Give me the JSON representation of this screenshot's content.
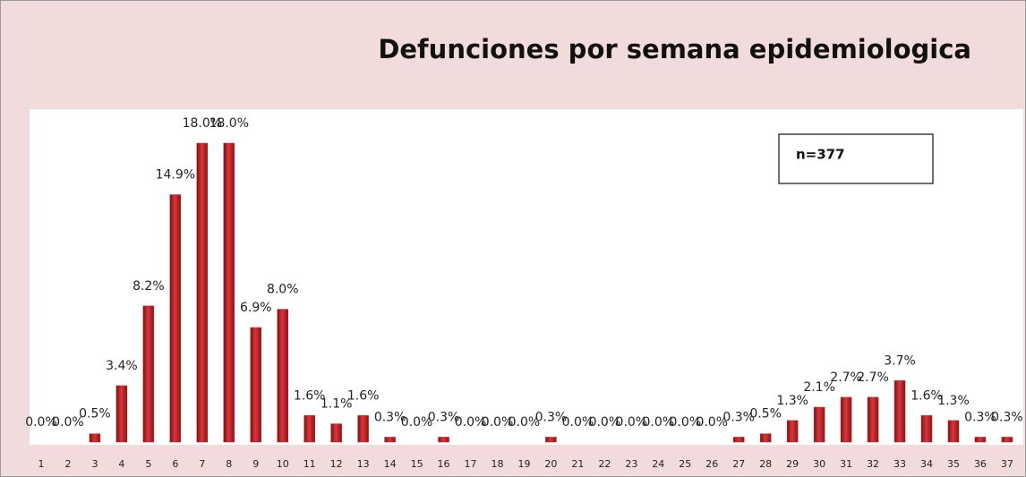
{
  "chart_data": {
    "type": "bar",
    "title": "Defunciones por semana epidemiologica",
    "annotation": "n=377",
    "categories": [
      "1",
      "2",
      "3",
      "4",
      "5",
      "6",
      "7",
      "8",
      "9",
      "10",
      "11",
      "12",
      "13",
      "14",
      "15",
      "16",
      "17",
      "18",
      "19",
      "20",
      "21",
      "22",
      "23",
      "24",
      "25",
      "26",
      "27",
      "28",
      "29",
      "30",
      "31",
      "32",
      "33",
      "34",
      "35",
      "36",
      "37"
    ],
    "values": [
      0.0,
      0.0,
      0.5,
      3.4,
      8.2,
      14.9,
      18.0,
      18.0,
      6.9,
      8.0,
      1.6,
      1.1,
      1.6,
      0.3,
      0.0,
      0.3,
      0.0,
      0.0,
      0.0,
      0.3,
      0.0,
      0.0,
      0.0,
      0.0,
      0.0,
      0.0,
      0.3,
      0.5,
      1.3,
      2.1,
      2.7,
      2.7,
      3.7,
      1.6,
      1.3,
      0.3,
      0.3
    ],
    "value_labels": [
      "0.0%",
      "0.0%",
      "0.5%",
      "3.4%",
      "8.2%",
      "14.9%",
      "18.0%",
      "18.0%",
      "6.9%",
      "8.0%",
      "1.6%",
      "1.1%",
      "1.6%",
      "0.3%",
      "0.0%",
      "0.3%",
      "0.0%",
      "0.0%",
      "0.0%",
      "0.3%",
      "0.0%",
      "0.0%",
      "0.0%",
      "0.0%",
      "0.0%",
      "0.0%",
      "0.3%",
      "0.5%",
      "1.3%",
      "2.1%",
      "2.7%",
      "2.7%",
      "3.7%",
      "1.6%",
      "1.3%",
      "0.3%",
      "0.3%"
    ],
    "color": "#c0282c"
  }
}
